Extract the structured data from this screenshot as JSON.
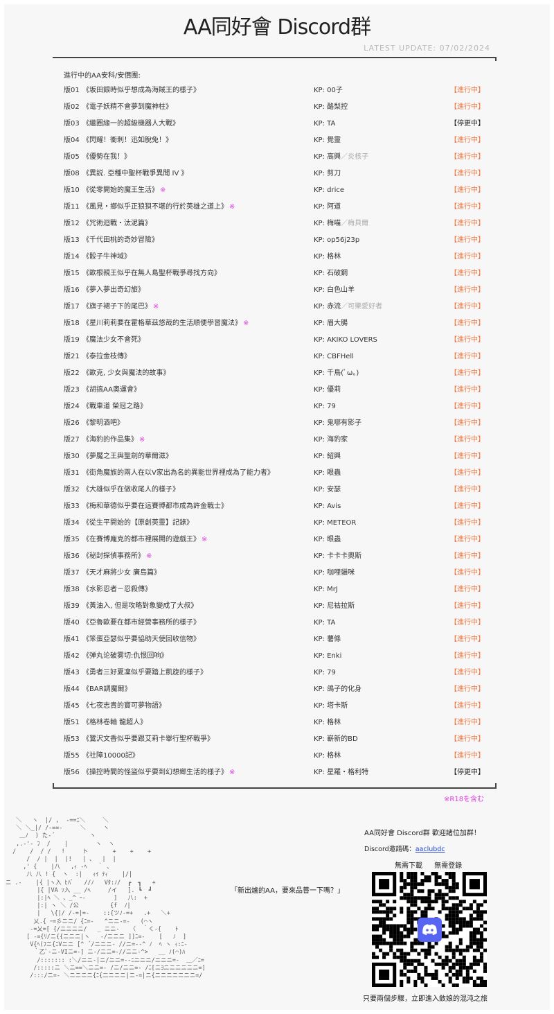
{
  "header": {
    "title": "AA同好會 Discord群",
    "update": "LATEST UPDATE: 07/02/2024"
  },
  "list": {
    "heading": "進行中的AA安科/安價團:",
    "rows": [
      {
        "ban": "版01",
        "name": "《坂田銀時似乎想成為海賊王的樣子》",
        "mark": "",
        "kp": "KP: 00子",
        "kp2": "",
        "status": "【進行中】",
        "stopped": false
      },
      {
        "ban": "版02",
        "name": "《電子妖精不會夢到魔神柱》",
        "mark": "",
        "kp": "KP: 酪梨控",
        "kp2": "",
        "status": "【進行中】",
        "stopped": false
      },
      {
        "ban": "版03",
        "name": "《繼圈緣一的超級機器人大戰》",
        "mark": "",
        "kp": "KP: TA",
        "kp2": "",
        "status": "【停更中】",
        "stopped": true
      },
      {
        "ban": "版04",
        "name": "《閃耀！衝刺！迅如脫兔！》",
        "mark": "",
        "kp": "KP: 覺靈",
        "kp2": "",
        "status": "【進行中】",
        "stopped": false
      },
      {
        "ban": "版05",
        "name": "《優勢在我！》",
        "mark": "",
        "kp": "KP: 高興",
        "kp2": "／炎核子",
        "status": "【進行中】",
        "stopped": false
      },
      {
        "ban": "版08",
        "name": "《異説. 亞種中聖杯戰爭異聞 IV 》",
        "mark": "",
        "kp": "KP: 剪刀",
        "kp2": "",
        "status": "【進行中】",
        "stopped": false
      },
      {
        "ban": "版10",
        "name": "《從零開始的魔王生活》",
        "mark": "※",
        "kp": "KP: drice",
        "kp2": "",
        "status": "【進行中】",
        "stopped": false
      },
      {
        "ban": "版11",
        "name": "《風見・鄉似乎正狼狽不堪的行於英雄之道上》",
        "mark": "※",
        "kp": "KP: 阿道",
        "kp2": "",
        "status": "【進行中】",
        "stopped": false
      },
      {
        "ban": "版12",
        "name": "《咒術迴戰・汰泥篇》",
        "mark": "",
        "kp": "KP: 梅喵",
        "kp2": "／梅貝爾",
        "status": "【進行中】",
        "stopped": false
      },
      {
        "ban": "版13",
        "name": "《千代田桃的奇妙冒險》",
        "mark": "",
        "kp": "KP: op56j23p",
        "kp2": "",
        "status": "【進行中】",
        "stopped": false
      },
      {
        "ban": "版14",
        "name": "《骰子牛神域》",
        "mark": "",
        "kp": "KP: 格林",
        "kp2": "",
        "status": "【進行中】",
        "stopped": false
      },
      {
        "ban": "版15",
        "name": "《歐根親王似乎在無人島聖杯戰爭尋找方向》",
        "mark": "",
        "kp": "KP: 石破鋼",
        "kp2": "",
        "status": "【進行中】",
        "stopped": false
      },
      {
        "ban": "版16",
        "name": "《夢入夢出奇幻旅》",
        "mark": "",
        "kp": "KP: 白色山羊",
        "kp2": "",
        "status": "【進行中】",
        "stopped": false
      },
      {
        "ban": "版17",
        "name": "《旗子裙子下的尾巴》",
        "mark": "※",
        "kp": "KP: 赤流",
        "kp2": "／可樂愛好者",
        "status": "【進行中】",
        "stopped": false
      },
      {
        "ban": "版18",
        "name": "《星川莉莉要在霍格華茲悠哉的生活順便學習魔法》",
        "mark": "※",
        "kp": "KP: 眉大腸",
        "kp2": "",
        "status": "【進行中】",
        "stopped": false
      },
      {
        "ban": "版19",
        "name": "《魔法少女不會死》",
        "mark": "",
        "kp": "KP: AKIKO LOVERS",
        "kp2": "",
        "status": "【進行中】",
        "stopped": false
      },
      {
        "ban": "版21",
        "name": "《泰拉金枝傳》",
        "mark": "",
        "kp": "KP: CBFHell",
        "kp2": "",
        "status": "【進行中】",
        "stopped": false
      },
      {
        "ban": "版22",
        "name": "《歐克, 少女與魔法的故事》",
        "mark": "",
        "kp": "KP: 千鳥(ﾟω。)",
        "kp2": "",
        "status": "【進行中】",
        "stopped": false
      },
      {
        "ban": "版23",
        "name": "《胡搞AA奧運會》",
        "mark": "",
        "kp": "KP: 優莉",
        "kp2": "",
        "status": "【進行中】",
        "stopped": false
      },
      {
        "ban": "版24",
        "name": "《戰車道 榮冠之路》",
        "mark": "",
        "kp": "KP: 79",
        "kp2": "",
        "status": "【進行中】",
        "stopped": false
      },
      {
        "ban": "版26",
        "name": "《黎明酒吧》",
        "mark": "",
        "kp": "KP: 鬼哪有影子",
        "kp2": "",
        "status": "【進行中】",
        "stopped": false
      },
      {
        "ban": "版27",
        "name": "《海豹的作品集》",
        "mark": "※",
        "kp": "KP: 海豹家",
        "kp2": "",
        "status": "【進行中】",
        "stopped": false
      },
      {
        "ban": "版30",
        "name": "《夢魘之王與聖劍的華爾滋》",
        "mark": "",
        "kp": "KP: 紹興",
        "kp2": "",
        "status": "【進行中】",
        "stopped": false
      },
      {
        "ban": "版31",
        "name": "《街角魔族的兩人在以V家出為名的異能世界裡成為了能力者》",
        "mark": "",
        "kp": "KP: 眼蟲",
        "kp2": "",
        "status": "【進行中】",
        "stopped": false
      },
      {
        "ban": "版32",
        "name": "《大雄似乎在做收尾人的樣子》",
        "mark": "",
        "kp": "KP: 安瑟",
        "kp2": "",
        "status": "【進行中】",
        "stopped": false
      },
      {
        "ban": "版33",
        "name": "《梅和華德似乎要在這賽博都市成為許金戰士》",
        "mark": "",
        "kp": "KP: Avis",
        "kp2": "",
        "status": "【進行中】",
        "stopped": false
      },
      {
        "ban": "版34",
        "name": "《從生平開始的【原創英靈】記錄》",
        "mark": "",
        "kp": "KP: METEOR",
        "kp2": "",
        "status": "【進行中】",
        "stopped": false
      },
      {
        "ban": "版35",
        "name": "《在賽博龐克的都市裡展開的遊戲王》",
        "mark": "※",
        "kp": "KP: 眼蟲",
        "kp2": "",
        "status": "【進行中】",
        "stopped": false
      },
      {
        "ban": "版36",
        "name": "《秘封探偵事務所》",
        "mark": "※",
        "kp": "KP: 卡卡卡奧斯",
        "kp2": "",
        "status": "【進行中】",
        "stopped": false
      },
      {
        "ban": "版37",
        "name": "《天才麻將少女 廣島篇》",
        "mark": "",
        "kp": "KP: 咖哩貓咪",
        "kp2": "",
        "status": "【進行中】",
        "stopped": false
      },
      {
        "ban": "版38",
        "name": "《水影忍者－忍殺傳》",
        "mark": "",
        "kp": "KP: MrJ",
        "kp2": "",
        "status": "【進行中】",
        "stopped": false
      },
      {
        "ban": "版39",
        "name": "《黃油入, 但是攻略對象變成了大叔》",
        "mark": "",
        "kp": "KP: 尼祜拉斯",
        "kp2": "",
        "status": "【進行中】",
        "stopped": false
      },
      {
        "ban": "版40",
        "name": "《亞魯歐要在都市經營事務所的樣子》",
        "mark": "",
        "kp": "KP: TA",
        "kp2": "",
        "status": "【進行中】",
        "stopped": false
      },
      {
        "ban": "版41",
        "name": "《笨蛋亞瑟似乎要協助天使回收信物》",
        "mark": "",
        "kp": "KP: 薯條",
        "kp2": "",
        "status": "【進行中】",
        "stopped": false
      },
      {
        "ban": "版42",
        "name": "《弹丸论破雾切:仇恨回响》",
        "mark": "",
        "kp": "KP: Enki",
        "kp2": "",
        "status": "【進行中】",
        "stopped": false
      },
      {
        "ban": "版43",
        "name": "《勇者三好夏凜似乎要踏上凱旋的樣子》",
        "mark": "",
        "kp": "KP: 79",
        "kp2": "",
        "status": "【進行中】",
        "stopped": false
      },
      {
        "ban": "版44",
        "name": "《BAR調魔爾》",
        "mark": "",
        "kp": "KP: 鴿子的化身",
        "kp2": "",
        "status": "【進行中】",
        "stopped": false
      },
      {
        "ban": "版45",
        "name": "《七夜志貴的寶可夢物語》",
        "mark": "",
        "kp": "KP: 塔卡斯",
        "kp2": "",
        "status": "【進行中】",
        "stopped": false
      },
      {
        "ban": "版51",
        "name": "《格林卷軸 龍超人》",
        "mark": "",
        "kp": "KP: 格林",
        "kp2": "",
        "status": "【進行中】",
        "stopped": false
      },
      {
        "ban": "版53",
        "name": "《鷺沢文香似乎要跟艾莉卡舉行聖杯戰爭》",
        "mark": "",
        "kp": "KP: 嶄新的BD",
        "kp2": "",
        "status": "【進行中】",
        "stopped": false
      },
      {
        "ban": "版55",
        "name": "《社障10000記》",
        "mark": "",
        "kp": "KP: 格林",
        "kp2": "",
        "status": "【進行中】",
        "stopped": false
      },
      {
        "ban": "版56",
        "name": "《操控時間的怪盜似乎要到幻想鄉生活的樣子》",
        "mark": "※",
        "kp": "KP: 星羅・格利特",
        "kp2": "",
        "status": "【停更中】",
        "stopped": true
      }
    ],
    "r18_note": "※R18を含む"
  },
  "colors": {
    "active": "#ee7744",
    "stopped": "#222222",
    "r18": "#e040e0",
    "discord": "#5865f2",
    "link": "#2244cc"
  },
  "promo": {
    "art": [
      "   ＼   ヽ  |/ ,  -==ﾆ＼     ＼",
      "   ＼ ＼_|/ /-==‐     ＼     ヽ",
      "    ＿ﾉ  ) た‐´          ヽ",
      "   ,.‐'‐ ﾌ  /    |        ヽ  ヽ",
      "  /    /  / /   !     ト       +    +    +",
      "      /  / |  |  |!   | 、  |  |",
      "     ,' {    |八   ,ｨ ‐ﾍ   ｀ 、",
      "      八 八 ! {  ヽ  :|   ｨｲ ﾃｨ    |/|",
      "ニ .‐    |{ |ヽ入 ﾋﾊﾞ   //ﾉ   Vﾀ:ﾉ/  ┏  ┓   +",
      "         |{ |VA ｿ入 __ /ﾍ     /イ   ]. ┗  ┛",
      "         |:|ﾍ ＼ 、_^ ｰ‐        ]   八:  +",
      "         |:| ヽ ＼ /公         {f  ﾉ|",
      "         |   \\{|/ /-=|=-    ::{ツﾉ‐=+   .+   ＼+",
      "        乂.{ ｰ=彡ニニ/ {ﾆ=‐   ^ニニ-=‐   (⌒ヽ",
      "       -=乂=[ {/ニニニニ/   _ ニニ-   〈  ｀く‐{    ﾄ",
      "      [ -={ﾘ/ニ{{ニニニ|ヽ   ‐/ニニニ ]]ﾆ=-    [   ﾉ  ]",
      "       V{ﾍ(ﾌニ{ﾆVニニ [^ ´/ニニニ‐ //ニ=-‐^ ﾉ  ﾍ ヽ ｨ:ﾆ-",
      "        ｀乙ﾞ-ニ-VIニ=-] ニ-/ニニ=-//ニニ-^>   __ ﾉ(⌒)ﾊ",
      "         /::::::: :＼/ニニ-|ニ/ニニ=--ﾆニニニ/ニニニ=-  ＿／ﾆ=",
      "        /:::::ニ ＼ニ==＼ニニ=‐ /ニ/ニニ=‐ /ﾆ[ニﾖニニニニニニ=]",
      "       /:::/ニ=‐ ＼ニニニニ{ﾆ{二ニニニ|ニ-=|ニ{ニニニニニニニ=/"
    ],
    "speech": "「新出爐的AA，要來品嘗一下嗎？」",
    "invite_title": "AA同好會 Discord群   歡迎諸位加群！",
    "invite_label": "Discord邀請碼：",
    "invite_code": "aaclubdc",
    "qr_caption": "無需下載 無需登錄",
    "qr_icon": "discord-logo-icon",
    "bottom_caption": "只要兩個步驟，立即進入斂娘的混沌之旅"
  }
}
